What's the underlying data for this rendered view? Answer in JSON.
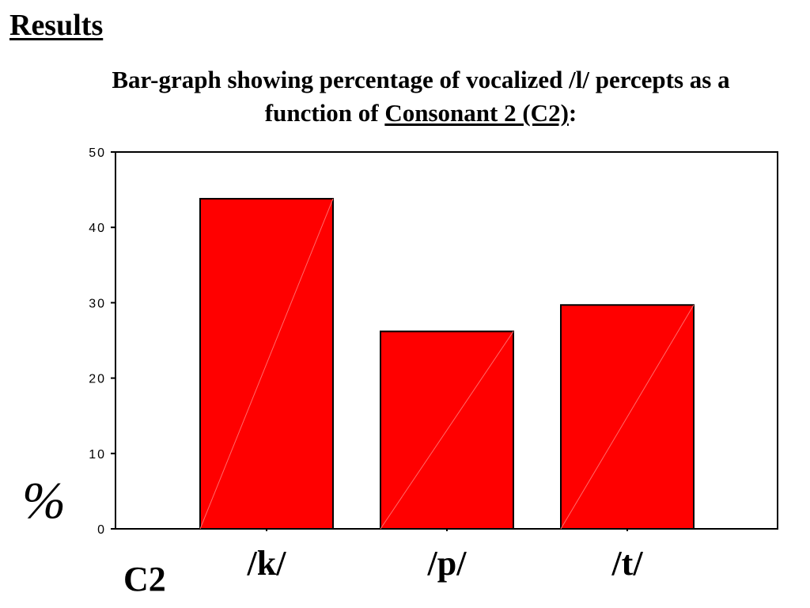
{
  "slide": {
    "heading": "Results",
    "caption_line1": "Bar-graph showing percentage of vocalized /l/ percepts as a",
    "caption_line2_prefix": "function of ",
    "caption_line2_underlined": "Consonant 2 (C2)",
    "caption_line2_suffix": ":"
  },
  "chart_data": {
    "type": "bar",
    "categories": [
      "/k/",
      "/p/",
      "/t/"
    ],
    "values": [
      43.8,
      26.2,
      29.7
    ],
    "title": "",
    "xlabel": "C2",
    "ylabel": "%",
    "ylim": [
      0,
      50
    ],
    "yticks": [
      0,
      10,
      20,
      30,
      40,
      50
    ],
    "grid": false,
    "legend": "none",
    "bar_color": "#ff0000",
    "bar_edge_color": "#000000"
  }
}
